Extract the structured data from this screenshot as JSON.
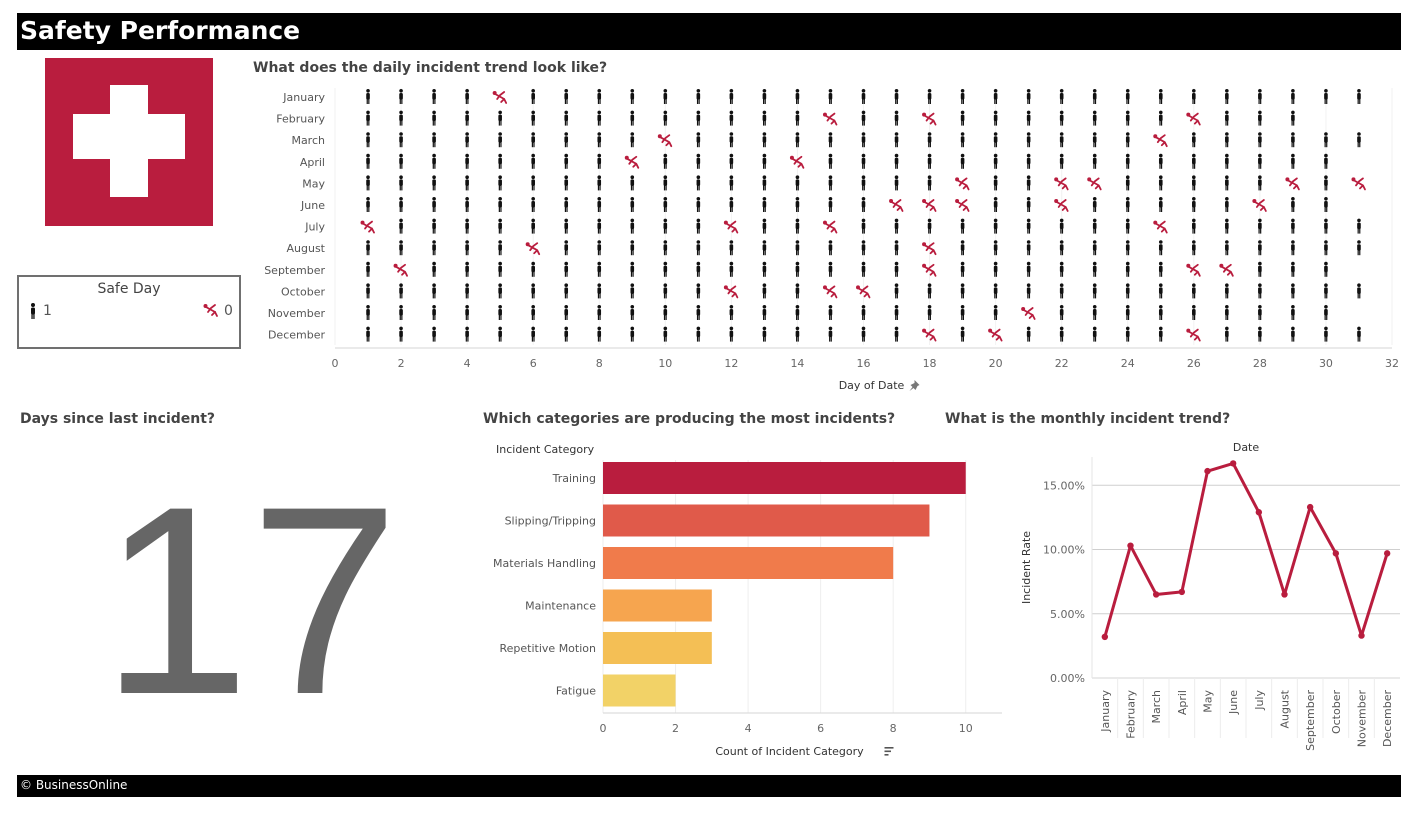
{
  "header": {
    "title": "Safety Performance"
  },
  "footer": {
    "text": "© BusinessOnline"
  },
  "logo": {
    "icon": "red-cross-icon",
    "color": "#b91d3e"
  },
  "legend": {
    "title": "Safe Day",
    "safe_label": "1",
    "incident_label": "0"
  },
  "days_since": {
    "title": "Days since last incident?",
    "value": "17"
  },
  "colors": {
    "incident": "#b91d3e",
    "safe": "#111111"
  },
  "chart_data": [
    {
      "type": "scatter",
      "title": "What does the daily incident trend look like?",
      "xlabel": "Day of Date",
      "xlim": [
        0,
        32
      ],
      "xticks": [
        0,
        2,
        4,
        6,
        8,
        10,
        12,
        14,
        16,
        18,
        20,
        22,
        24,
        26,
        28,
        30,
        32
      ],
      "months": [
        "January",
        "February",
        "March",
        "April",
        "May",
        "June",
        "July",
        "August",
        "September",
        "October",
        "November",
        "December"
      ],
      "days_in_month": [
        31,
        29,
        31,
        30,
        31,
        30,
        31,
        31,
        30,
        31,
        30,
        31
      ],
      "incident_days": [
        [
          5
        ],
        [
          15,
          18,
          26
        ],
        [
          10,
          25
        ],
        [
          9,
          14
        ],
        [
          19,
          22,
          23,
          29,
          31
        ],
        [
          17,
          18,
          19,
          22,
          28
        ],
        [
          1,
          12,
          15,
          25
        ],
        [
          6,
          18
        ],
        [
          2,
          18,
          26,
          27
        ],
        [
          12,
          15,
          16
        ],
        [
          21
        ],
        [
          18,
          20,
          26
        ]
      ],
      "legend": [
        "1",
        "0"
      ]
    },
    {
      "type": "bar",
      "title": "Which categories are producing the most incidents?",
      "ylabel": "Incident Category",
      "xlabel": "Count of Incident Category",
      "categories": [
        "Training",
        "Slipping/Tripping",
        "Materials Handling",
        "Maintenance",
        "Repetitive Motion",
        "Fatigue"
      ],
      "values": [
        10,
        9,
        8,
        3,
        3,
        2
      ],
      "colors": [
        "#b91d3e",
        "#e05a4a",
        "#f07b4b",
        "#f6a54f",
        "#f4bf55",
        "#f2d267"
      ],
      "xlim": [
        0,
        11
      ],
      "xticks": [
        0,
        2,
        4,
        6,
        8,
        10
      ]
    },
    {
      "type": "line",
      "title": "What is the monthly incident trend?",
      "xlabel": "Date",
      "ylabel": "Incident Rate",
      "categories": [
        "January",
        "February",
        "March",
        "April",
        "May",
        "June",
        "July",
        "August",
        "September",
        "October",
        "November",
        "December"
      ],
      "values": [
        3.2,
        10.3,
        6.5,
        6.7,
        16.1,
        16.7,
        12.9,
        6.5,
        13.3,
        9.7,
        3.3,
        9.7
      ],
      "ylim": [
        0,
        17.2
      ],
      "yticks": [
        "0.00%",
        "5.00%",
        "10.00%",
        "15.00%"
      ],
      "ytick_values": [
        0,
        5,
        10,
        15
      ],
      "grid": true,
      "color": "#b91d3e"
    }
  ]
}
